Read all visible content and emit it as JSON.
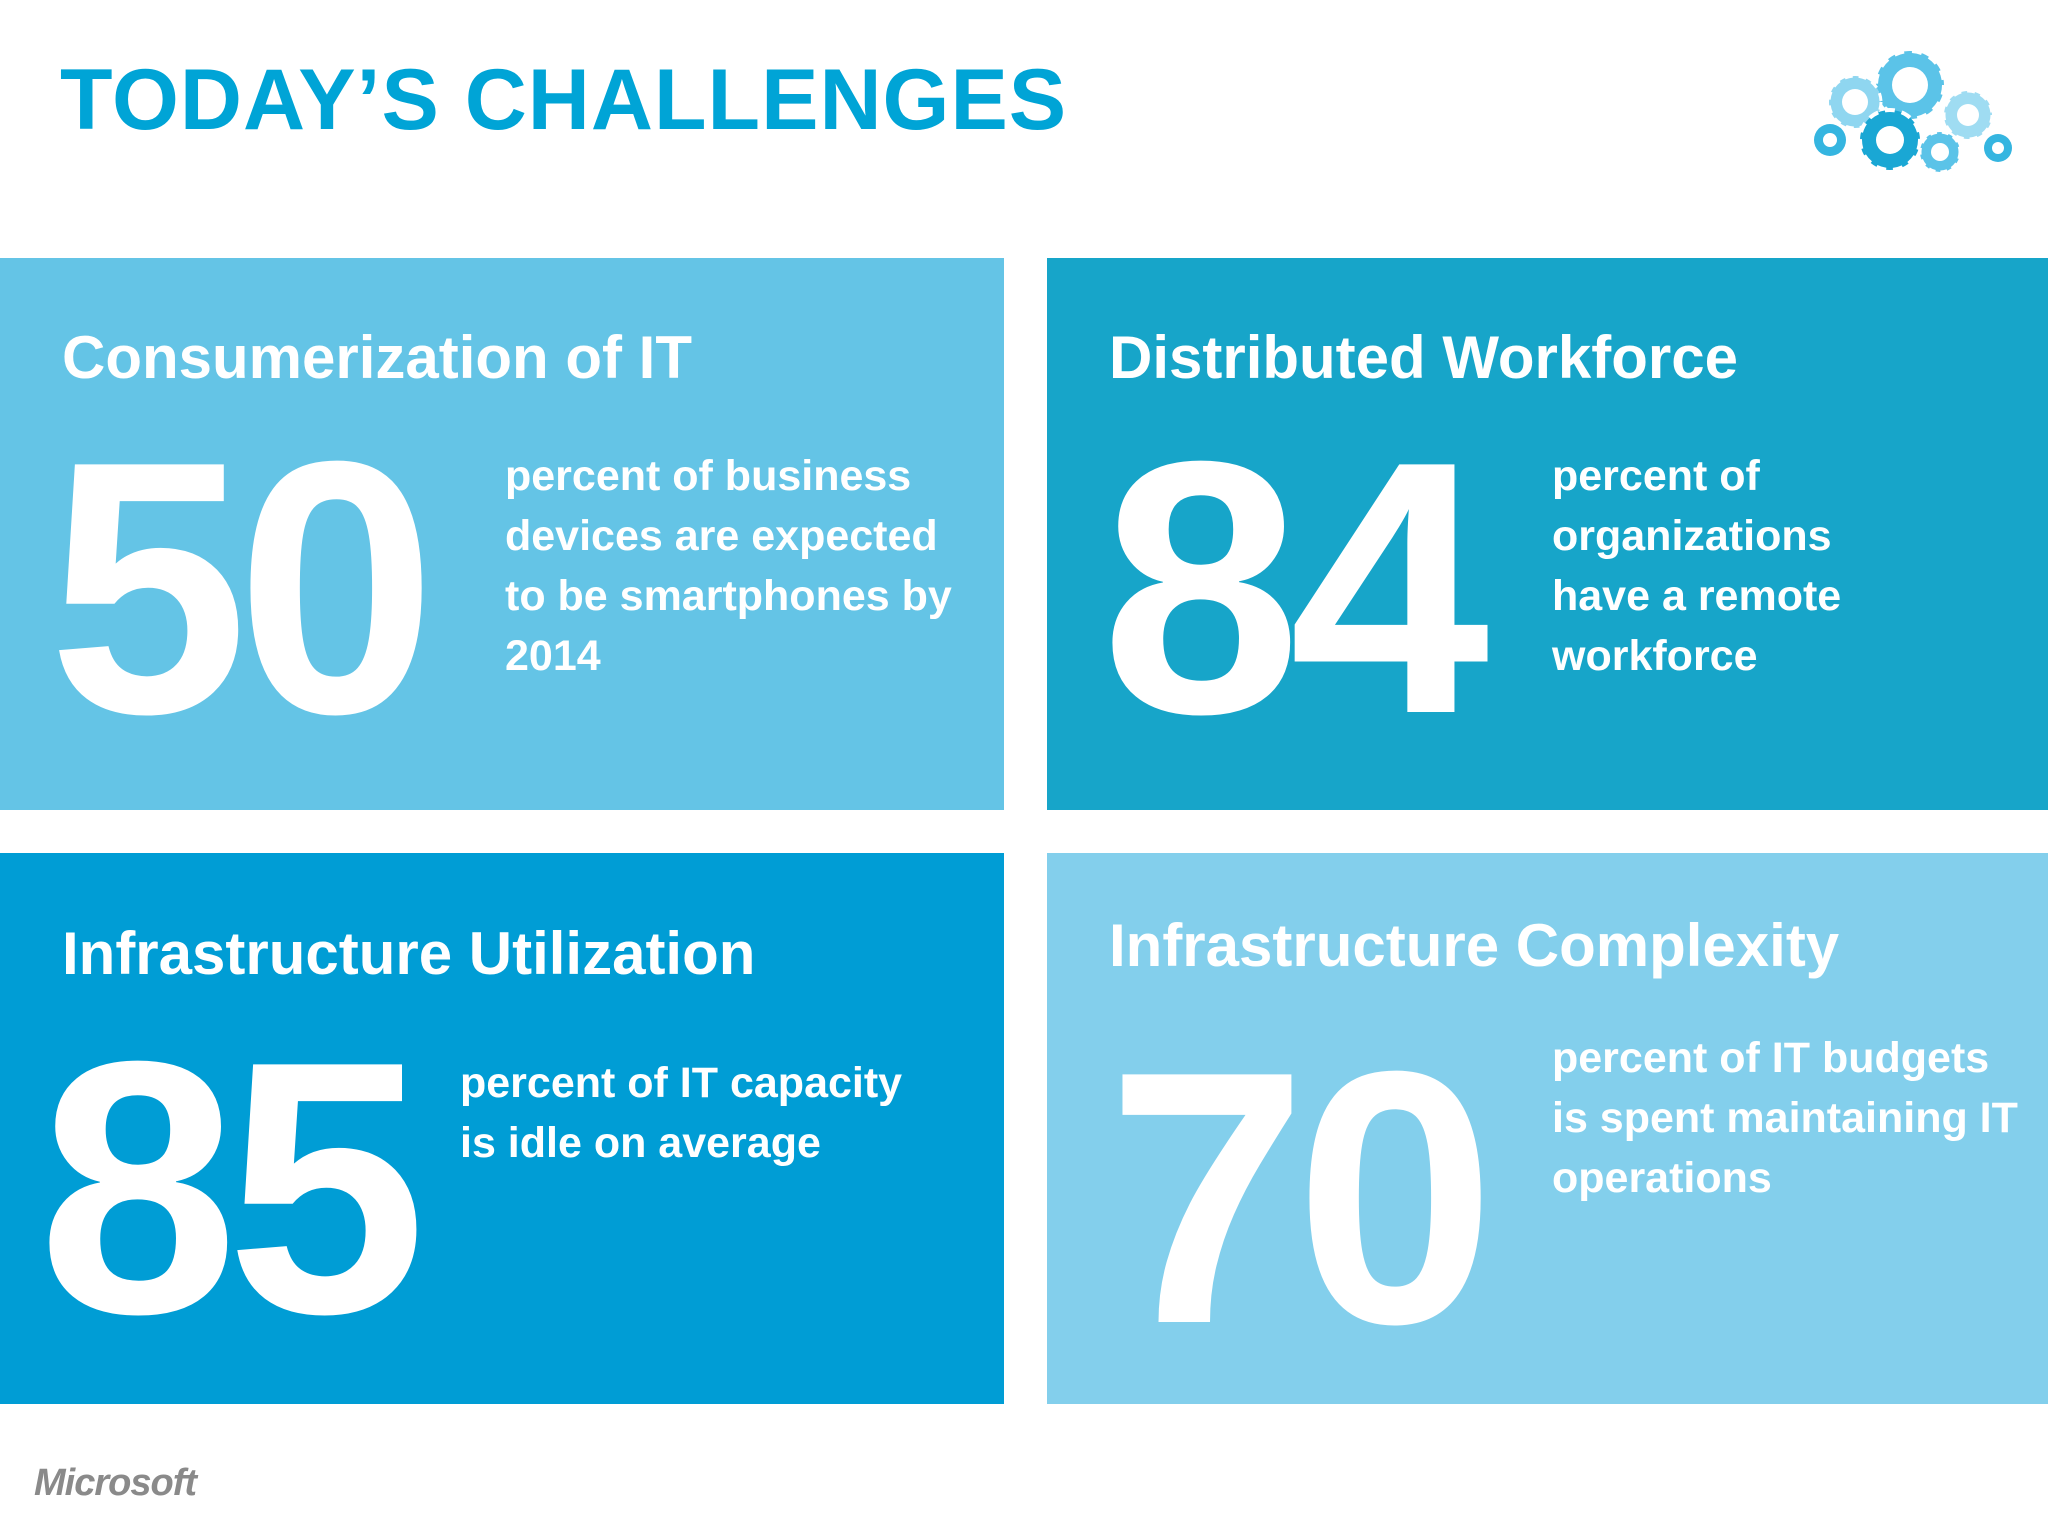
{
  "slide": {
    "title": "TODAY’S CHALLENGES",
    "footer_logo": "Microsoft",
    "logo_icon": "cloud-gears-icon"
  },
  "colors": {
    "title": "#00a4d6",
    "tile_consumerization": "#64c4e6",
    "tile_workforce": "#17a5c9",
    "tile_utilization": "#009dd5",
    "tile_complexity": "#83cfec",
    "footer": "#8a8a8a"
  },
  "tiles": [
    {
      "heading": "Consumerization of IT",
      "number": "50",
      "text": "percent of business devices are expected to be smartphones by 2014"
    },
    {
      "heading": "Distributed Workforce",
      "number": "84",
      "text": "percent of organizations have a remote workforce"
    },
    {
      "heading": "Infrastructure Utilization",
      "number": "85",
      "text": "percent of IT capacity is idle on average"
    },
    {
      "heading": "Infrastructure Complexity",
      "number": "70",
      "text": "percent of IT budgets is spent maintaining IT operations"
    }
  ]
}
